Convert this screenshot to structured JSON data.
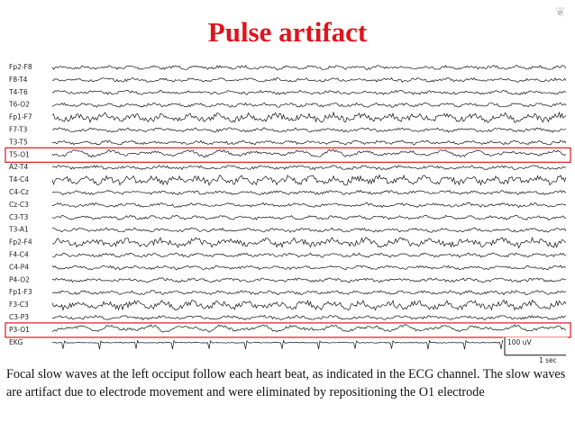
{
  "slide": {
    "title": "Pulse artifact",
    "channels": [
      "Fp2-F8",
      "F8-T4",
      "T4-T6",
      "T6-O2",
      "Fp1-F7",
      "F7-T3",
      "T3-T5",
      "T5-O1",
      "A2-T4",
      "T4-C4",
      "C4-Cz",
      "Cz-C3",
      "C3-T3",
      "T3-A1",
      "Fp2-F4",
      "F4-C4",
      "C4-P4",
      "P4-O2",
      "Fp1-F3",
      "F3-C3",
      "C3-P3",
      "P3-O1",
      "EKG"
    ],
    "scale_amplitude": "100 uV",
    "scale_time": "1 sec",
    "caption": "Focal slow waves at the left occiput follow each heart beat, as indicated in the ECG channel. The slow waves are artifact due to electrode movement and were eliminated by repositioning the O1 electrode"
  }
}
